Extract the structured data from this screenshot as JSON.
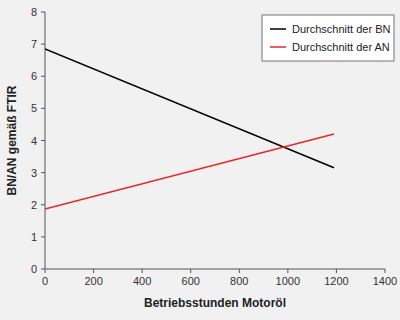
{
  "chart_data": {
    "type": "line",
    "x_label": "Betriebsstunden Motoröl",
    "y_label": "BN/AN gemäß FTIR",
    "x": [
      0,
      1190
    ],
    "series": [
      {
        "name": "Durchschnitt der BN",
        "color": "#000000",
        "values": [
          6.85,
          3.15
        ]
      },
      {
        "name": "Durchschnitt der AN",
        "color": "#e8262a",
        "values": [
          1.87,
          4.2
        ]
      }
    ],
    "xlim": [
      0,
      1400
    ],
    "xticks": [
      0,
      200,
      400,
      600,
      800,
      1000,
      1200,
      1400
    ],
    "ylim": [
      0,
      8
    ],
    "yticks": [
      0,
      1,
      2,
      3,
      4,
      5,
      6,
      7,
      8
    ],
    "grid": false,
    "legend": "upper right"
  }
}
